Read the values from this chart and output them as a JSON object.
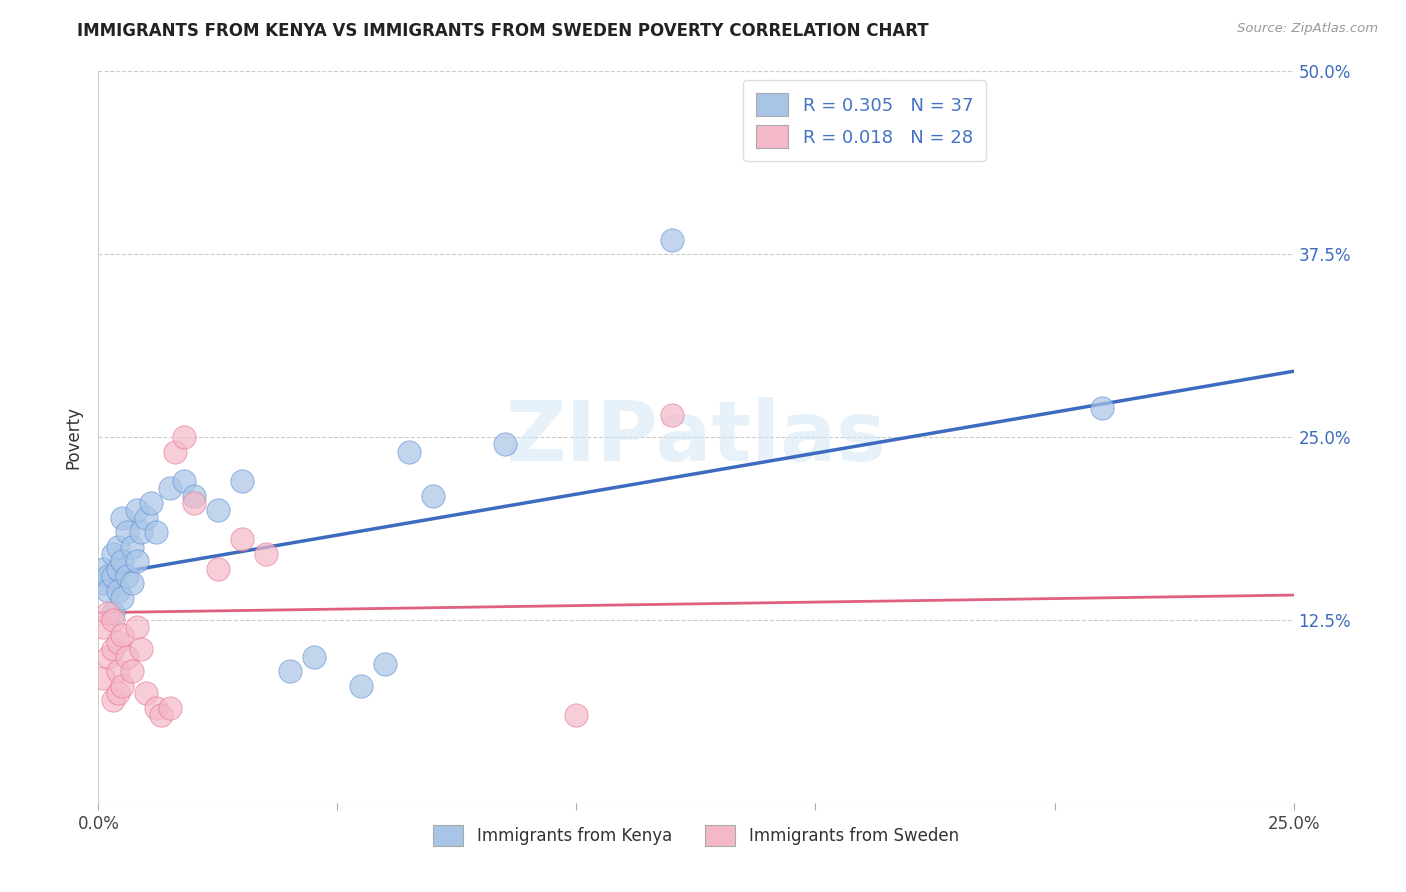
{
  "title": "IMMIGRANTS FROM KENYA VS IMMIGRANTS FROM SWEDEN POVERTY CORRELATION CHART",
  "source": "Source: ZipAtlas.com",
  "ylabel": "Poverty",
  "x_min": 0.0,
  "x_max": 0.25,
  "y_min": 0.0,
  "y_max": 0.5,
  "y_ticks": [
    0.0,
    0.125,
    0.25,
    0.375,
    0.5
  ],
  "y_tick_labels": [
    "",
    "12.5%",
    "25.0%",
    "37.5%",
    "50.0%"
  ],
  "kenya_color": "#a8c4e6",
  "kenya_edge_color": "#5b8ed6",
  "kenya_line_color": "#3d6bbf",
  "sweden_color": "#f4b8c8",
  "sweden_edge_color": "#e87090",
  "sweden_line_color": "#e06080",
  "kenya_R": 0.305,
  "kenya_N": 37,
  "sweden_R": 0.018,
  "sweden_N": 28,
  "legend_R_color": "#4472c4",
  "legend_label1": "Immigrants from Kenya",
  "legend_label2": "Immigrants from Sweden",
  "watermark": "ZIPatlas",
  "kenya_scatter_x": [
    0.001,
    0.001,
    0.002,
    0.002,
    0.003,
    0.003,
    0.003,
    0.004,
    0.004,
    0.004,
    0.005,
    0.005,
    0.005,
    0.006,
    0.006,
    0.007,
    0.007,
    0.008,
    0.008,
    0.009,
    0.01,
    0.011,
    0.012,
    0.015,
    0.018,
    0.02,
    0.025,
    0.03,
    0.04,
    0.045,
    0.055,
    0.06,
    0.065,
    0.07,
    0.085,
    0.12,
    0.21
  ],
  "kenya_scatter_y": [
    0.15,
    0.16,
    0.155,
    0.145,
    0.155,
    0.17,
    0.13,
    0.16,
    0.175,
    0.145,
    0.165,
    0.14,
    0.195,
    0.155,
    0.185,
    0.175,
    0.15,
    0.2,
    0.165,
    0.185,
    0.195,
    0.205,
    0.185,
    0.215,
    0.22,
    0.21,
    0.2,
    0.22,
    0.09,
    0.1,
    0.08,
    0.095,
    0.24,
    0.21,
    0.245,
    0.385,
    0.27
  ],
  "sweden_scatter_x": [
    0.001,
    0.001,
    0.002,
    0.002,
    0.003,
    0.003,
    0.003,
    0.004,
    0.004,
    0.004,
    0.005,
    0.005,
    0.006,
    0.007,
    0.008,
    0.009,
    0.01,
    0.012,
    0.013,
    0.015,
    0.016,
    0.018,
    0.02,
    0.025,
    0.03,
    0.035,
    0.1,
    0.12
  ],
  "sweden_scatter_y": [
    0.12,
    0.085,
    0.13,
    0.1,
    0.125,
    0.105,
    0.07,
    0.09,
    0.11,
    0.075,
    0.115,
    0.08,
    0.1,
    0.09,
    0.12,
    0.105,
    0.075,
    0.065,
    0.06,
    0.065,
    0.24,
    0.25,
    0.205,
    0.16,
    0.18,
    0.17,
    0.06,
    0.265
  ],
  "kenya_trend_x0": 0.0,
  "kenya_trend_x1": 0.25,
  "kenya_trend_y0": 0.155,
  "kenya_trend_y1": 0.295,
  "sweden_trend_x0": 0.0,
  "sweden_trend_x1": 0.25,
  "sweden_trend_y0": 0.13,
  "sweden_trend_y1": 0.142
}
